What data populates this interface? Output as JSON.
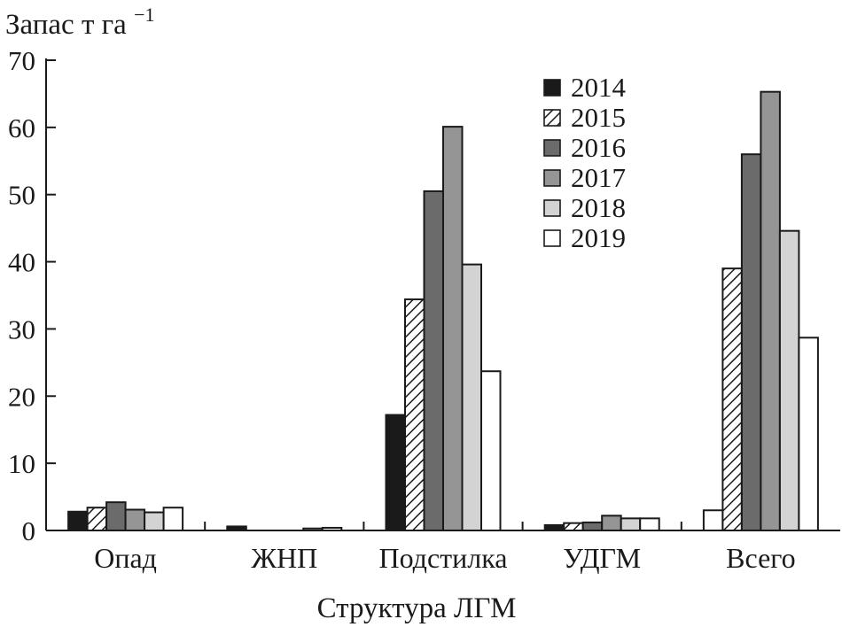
{
  "chart_data": {
    "type": "bar",
    "ylabel": "Запас т га",
    "ylabel_superscript": "−1",
    "xlabel": "Структура ЛГМ",
    "ylim": [
      0,
      70
    ],
    "yticks": [
      "0",
      "10",
      "20",
      "30",
      "40",
      "50",
      "60",
      "70"
    ],
    "grid": false,
    "legend_position": "top-right",
    "categories": [
      "Опад",
      "ЖНП",
      "Подстилка",
      "УДГМ",
      "Всего"
    ],
    "series": [
      {
        "name": "2014",
        "values": [
          2.8,
          0.6,
          17.2,
          0.8,
          0
        ],
        "color": "#1a1a1a",
        "pattern": "solid"
      },
      {
        "name": "2015",
        "values": [
          3.4,
          0,
          34.4,
          1.1,
          39.0
        ],
        "color": "#ffffff",
        "pattern": "hatch"
      },
      {
        "name": "2016",
        "values": [
          4.2,
          0,
          50.5,
          1.2,
          56.0
        ],
        "color": "#6b6b6b",
        "pattern": "solid"
      },
      {
        "name": "2017",
        "values": [
          3.1,
          0,
          60.1,
          2.2,
          65.3
        ],
        "color": "#959595",
        "pattern": "solid"
      },
      {
        "name": "2018",
        "values": [
          2.7,
          0.3,
          39.6,
          1.8,
          44.6
        ],
        "color": "#d3d3d3",
        "pattern": "solid"
      },
      {
        "name": "2019",
        "values": [
          3.4,
          0.4,
          23.7,
          1.8,
          28.7
        ],
        "color": "#ffffff",
        "pattern": "solid"
      }
    ],
    "extra_bars": [
      {
        "category": "Всего",
        "values_before_series": [
          3.0
        ]
      }
    ]
  }
}
